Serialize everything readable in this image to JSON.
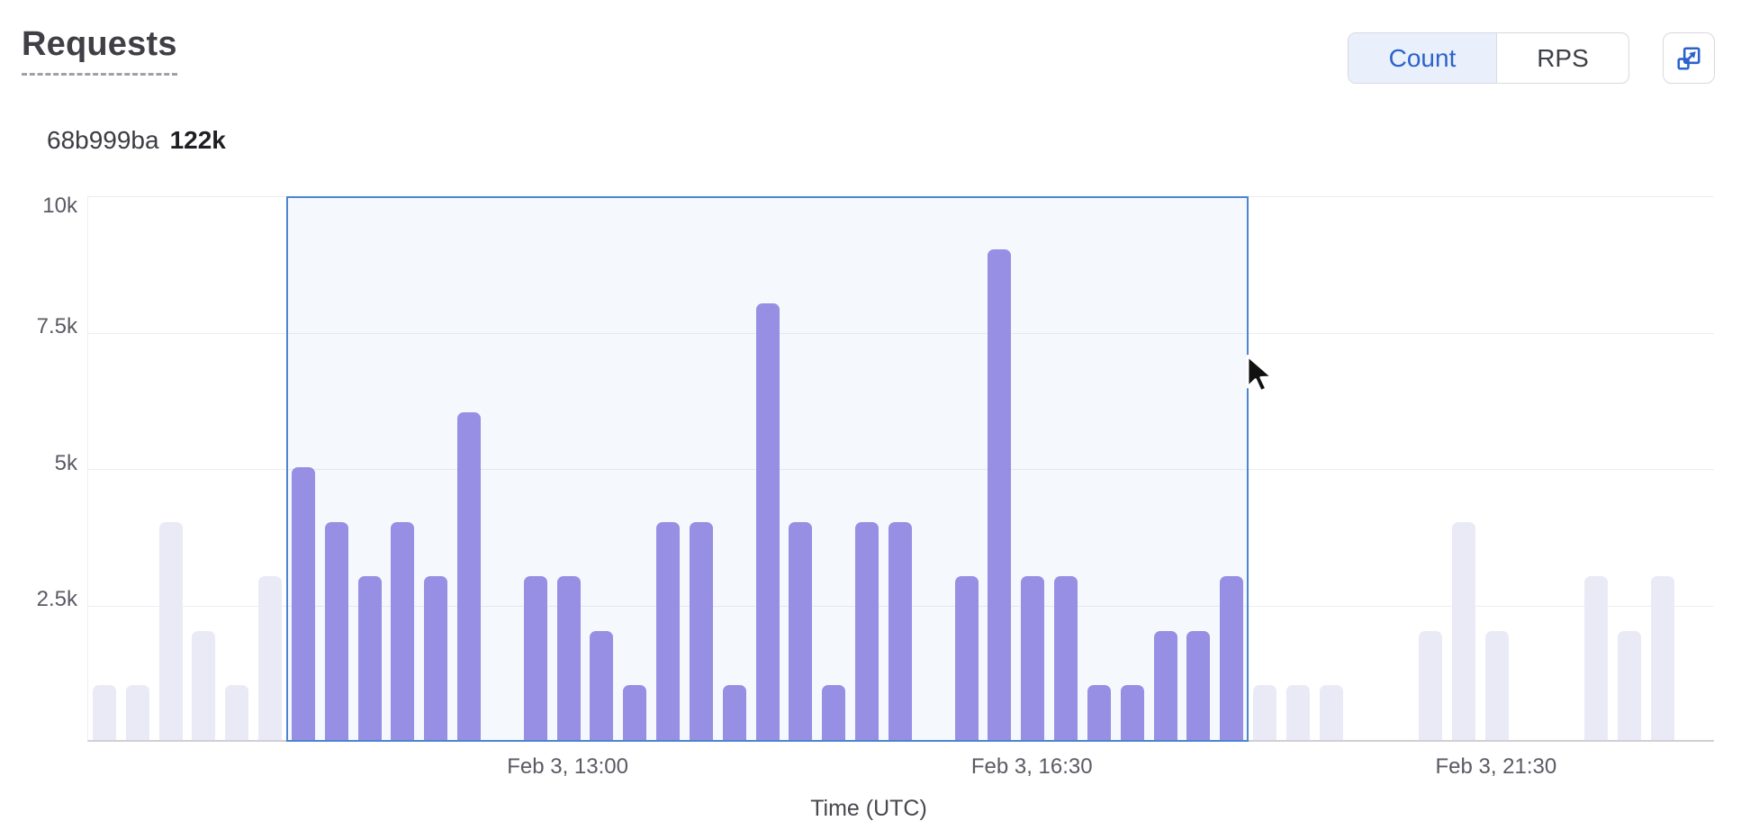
{
  "header": {
    "title": "Requests"
  },
  "view_toggle": {
    "options": [
      {
        "label": "Count",
        "active": true
      },
      {
        "label": "RPS",
        "active": false
      }
    ]
  },
  "expand_button": {
    "icon": "expand-icon",
    "color": "#2b63cb"
  },
  "legend": {
    "series_id": "68b999ba",
    "total": "122k",
    "dot_color": "#978fe3"
  },
  "chart_data": {
    "type": "bar",
    "title": "Requests",
    "xlabel": "Time (UTC)",
    "ylabel": "",
    "ylim": [
      0,
      10000
    ],
    "y_tick_labels": [
      "10k",
      "7.5k",
      "5k",
      "2.5k"
    ],
    "y_tick_values": [
      10000,
      7500,
      5000,
      2500
    ],
    "grid": true,
    "legend_position": "top-left",
    "series_name": "68b999ba",
    "series_total_label": "122k",
    "bar_color": "#978fe3",
    "dimmed_bar_color": "#eaeaf6",
    "x_ticks": [
      {
        "slot": 14,
        "label": "Feb 3, 13:00"
      },
      {
        "slot": 28,
        "label": "Feb 3, 16:30"
      },
      {
        "slot": 42,
        "label": "Feb 3, 21:30"
      }
    ],
    "selection": {
      "start_slot": 6,
      "end_slot": 34,
      "border_color": "#4c86d2"
    },
    "bars": [
      {
        "value": 1000,
        "state": "dimmed"
      },
      {
        "value": 1000,
        "state": "dimmed"
      },
      {
        "value": 4000,
        "state": "dimmed"
      },
      {
        "value": 2000,
        "state": "dimmed"
      },
      {
        "value": 1000,
        "state": "dimmed"
      },
      {
        "value": 3000,
        "state": "dimmed"
      },
      {
        "value": 5000,
        "state": "selected"
      },
      {
        "value": 4000,
        "state": "selected"
      },
      {
        "value": 3000,
        "state": "selected"
      },
      {
        "value": 4000,
        "state": "selected"
      },
      {
        "value": 3000,
        "state": "selected"
      },
      {
        "value": 6000,
        "state": "selected"
      },
      {
        "value": 0,
        "state": "empty"
      },
      {
        "value": 3000,
        "state": "selected"
      },
      {
        "value": 3000,
        "state": "selected"
      },
      {
        "value": 2000,
        "state": "selected"
      },
      {
        "value": 1000,
        "state": "selected"
      },
      {
        "value": 4000,
        "state": "selected"
      },
      {
        "value": 4000,
        "state": "selected"
      },
      {
        "value": 1000,
        "state": "selected"
      },
      {
        "value": 8000,
        "state": "selected"
      },
      {
        "value": 4000,
        "state": "selected"
      },
      {
        "value": 1000,
        "state": "selected"
      },
      {
        "value": 4000,
        "state": "selected"
      },
      {
        "value": 4000,
        "state": "selected"
      },
      {
        "value": 0,
        "state": "empty"
      },
      {
        "value": 3000,
        "state": "selected"
      },
      {
        "value": 9000,
        "state": "selected"
      },
      {
        "value": 3000,
        "state": "selected"
      },
      {
        "value": 3000,
        "state": "selected"
      },
      {
        "value": 1000,
        "state": "selected"
      },
      {
        "value": 1000,
        "state": "selected"
      },
      {
        "value": 2000,
        "state": "selected"
      },
      {
        "value": 2000,
        "state": "selected"
      },
      {
        "value": 3000,
        "state": "selected"
      },
      {
        "value": 1000,
        "state": "dimmed"
      },
      {
        "value": 1000,
        "state": "dimmed"
      },
      {
        "value": 1000,
        "state": "dimmed"
      },
      {
        "value": 0,
        "state": "empty"
      },
      {
        "value": 0,
        "state": "empty"
      },
      {
        "value": 2000,
        "state": "dimmed"
      },
      {
        "value": 4000,
        "state": "dimmed"
      },
      {
        "value": 2000,
        "state": "dimmed"
      },
      {
        "value": 0,
        "state": "empty"
      },
      {
        "value": 0,
        "state": "empty"
      },
      {
        "value": 3000,
        "state": "dimmed"
      },
      {
        "value": 2000,
        "state": "dimmed"
      },
      {
        "value": 3000,
        "state": "dimmed"
      }
    ]
  },
  "cursor": {
    "type": "pointer-arrow"
  }
}
